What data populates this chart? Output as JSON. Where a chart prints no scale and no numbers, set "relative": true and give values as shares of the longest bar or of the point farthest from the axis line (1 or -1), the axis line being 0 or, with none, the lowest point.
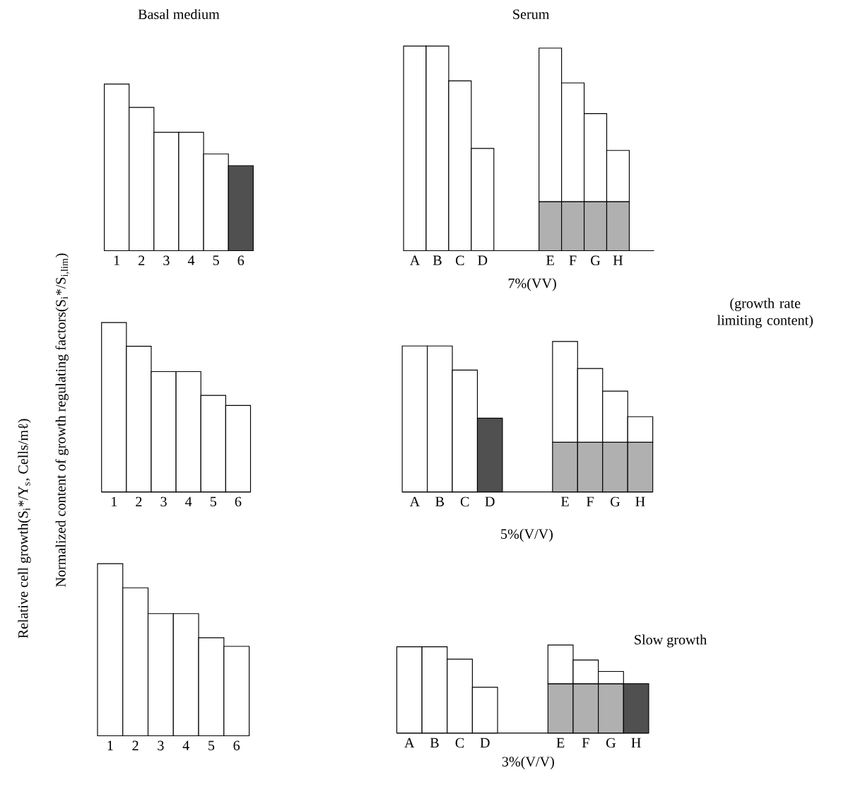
{
  "chart_data": [
    {
      "type": "bar",
      "title": "Basal medium",
      "relative": true,
      "categories": [
        "1",
        "2",
        "3",
        "4",
        "5",
        "6"
      ],
      "values": [
        1,
        0.86,
        0.71,
        0.71,
        0.58,
        0.51
      ],
      "colors": [
        "#ffffff",
        "#ffffff",
        "#ffffff",
        "#ffffff",
        "#ffffff",
        "#505050"
      ]
    },
    {
      "type": "bar",
      "title": "Serum",
      "xlabel": "7%(VV)",
      "relative": true,
      "stacked": true,
      "categories": [
        "A",
        "B",
        "C",
        "D",
        null,
        null,
        "E",
        "F",
        "G",
        "H"
      ],
      "series": [
        {
          "values": [
            1,
            1,
            0.83,
            0.5,
            null,
            null,
            0.24,
            0.24,
            0.24,
            0.24
          ],
          "colors": [
            "#ffffff",
            "#ffffff",
            "#ffffff",
            "#ffffff",
            null,
            null,
            "#b0b0b0",
            "#b0b0b0",
            "#b0b0b0",
            "#b0b0b0"
          ]
        },
        {
          "values": [
            null,
            null,
            null,
            null,
            null,
            null,
            0.75,
            0.58,
            0.43,
            0.25
          ],
          "color": "#ffffff"
        }
      ],
      "annotations": [
        "(growth rate limiting content)"
      ]
    },
    {
      "type": "bar",
      "ylabel": "Relative cell growth(S$_{i}$*/Y$_{s}$, Cells/mℓ)",
      "relative": true,
      "categories": [
        "1",
        "2",
        "3",
        "4",
        "5",
        "6"
      ],
      "values": [
        1,
        0.86,
        0.71,
        0.71,
        0.57,
        0.51
      ],
      "color": "#ffffff",
      "annotations": [
        "Normalized content of growth regulating factors(S$_{i}$*/S$_{i,lim}$)"
      ]
    },
    {
      "type": "bar",
      "xlabel": "5%(V/V)",
      "relative": true,
      "stacked": true,
      "categories": [
        "A",
        "B",
        "C",
        "D",
        null,
        null,
        "E",
        "F",
        "G",
        "H"
      ],
      "series": [
        {
          "values": [
            0.97,
            0.97,
            0.81,
            0.49,
            null,
            null,
            0.33,
            0.33,
            0.33,
            0.33
          ],
          "colors": [
            "#ffffff",
            "#ffffff",
            "#ffffff",
            "#505050",
            null,
            null,
            "#b0b0b0",
            "#b0b0b0",
            "#b0b0b0",
            "#b0b0b0"
          ]
        },
        {
          "values": [
            null,
            null,
            null,
            null,
            null,
            null,
            0.67,
            0.49,
            0.34,
            0.17
          ],
          "color": "#ffffff"
        }
      ]
    },
    {
      "type": "bar",
      "relative": true,
      "categories": [
        "1",
        "2",
        "3",
        "4",
        "5",
        "6"
      ],
      "values": [
        1,
        0.86,
        0.71,
        0.71,
        0.57,
        0.52
      ],
      "color": "#ffffff"
    },
    {
      "type": "bar",
      "xlabel": "3%(V/V)",
      "relative": true,
      "stacked": true,
      "categories": [
        "A",
        "B",
        "C",
        "D",
        null,
        null,
        "E",
        "F",
        "G",
        "H"
      ],
      "series": [
        {
          "values": [
            0.98,
            0.98,
            0.84,
            0.52,
            null,
            null,
            0.56,
            0.56,
            0.56,
            0.56
          ],
          "colors": [
            "#ffffff",
            "#ffffff",
            "#ffffff",
            "#ffffff",
            null,
            null,
            "#b0b0b0",
            "#b0b0b0",
            "#b0b0b0",
            "#505050"
          ]
        },
        {
          "values": [
            null,
            null,
            null,
            null,
            null,
            null,
            0.44,
            0.27,
            0.14,
            null
          ],
          "color": "#ffffff"
        }
      ],
      "annotations": [
        "Slow growth"
      ]
    }
  ]
}
